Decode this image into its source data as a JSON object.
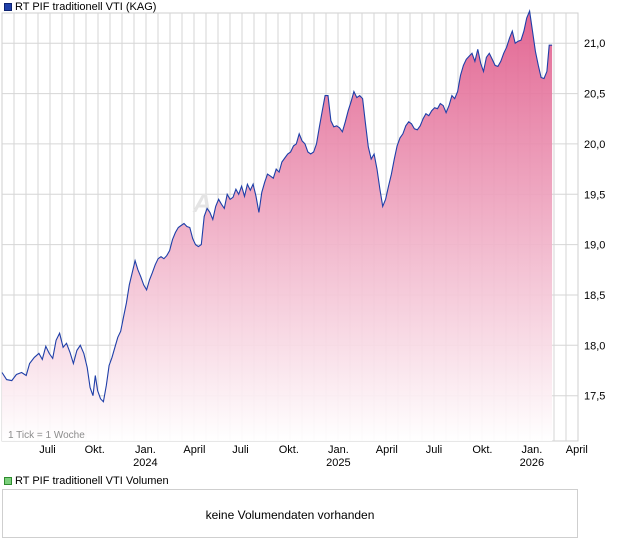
{
  "chart_data": {
    "type": "area",
    "series_name": "RT PIF traditionell VTI (KAG)",
    "tick_note": "1 Tick = 1 Woche",
    "y_ticks": [
      17.5,
      18.0,
      18.5,
      19.0,
      19.5,
      20.0,
      20.5,
      21.0
    ],
    "y_tick_labels": [
      "17,5",
      "18,0",
      "18,5",
      "19,0",
      "19,5",
      "20,0",
      "20,5",
      "21,0"
    ],
    "ylim": [
      17.05,
      21.3
    ],
    "x_ticks": [
      {
        "label": "Juli",
        "year": "",
        "t": 0.079
      },
      {
        "label": "Okt.",
        "year": "",
        "t": 0.161
      },
      {
        "label": "Jan.",
        "year": "2024",
        "t": 0.249
      },
      {
        "label": "April",
        "year": "",
        "t": 0.334
      },
      {
        "label": "Juli",
        "year": "",
        "t": 0.414
      },
      {
        "label": "Okt.",
        "year": "",
        "t": 0.498
      },
      {
        "label": "Jan.",
        "year": "2025",
        "t": 0.584
      },
      {
        "label": "April",
        "year": "",
        "t": 0.668
      },
      {
        "label": "Juli",
        "year": "",
        "t": 0.75
      },
      {
        "label": "Okt.",
        "year": "",
        "t": 0.834
      },
      {
        "label": "Jan.",
        "year": "2026",
        "t": 0.92
      },
      {
        "label": "April",
        "year": "",
        "t": 0.998
      }
    ],
    "points": [
      [
        0.0,
        17.73
      ],
      [
        0.008,
        17.66
      ],
      [
        0.017,
        17.65
      ],
      [
        0.025,
        17.71
      ],
      [
        0.034,
        17.73
      ],
      [
        0.042,
        17.7
      ],
      [
        0.048,
        17.82
      ],
      [
        0.056,
        17.88
      ],
      [
        0.064,
        17.92
      ],
      [
        0.07,
        17.86
      ],
      [
        0.076,
        17.99
      ],
      [
        0.082,
        17.92
      ],
      [
        0.088,
        17.87
      ],
      [
        0.094,
        18.05
      ],
      [
        0.1,
        18.12
      ],
      [
        0.106,
        17.98
      ],
      [
        0.112,
        18.02
      ],
      [
        0.118,
        17.93
      ],
      [
        0.124,
        17.82
      ],
      [
        0.13,
        17.95
      ],
      [
        0.136,
        18.0
      ],
      [
        0.142,
        17.92
      ],
      [
        0.148,
        17.78
      ],
      [
        0.153,
        17.58
      ],
      [
        0.158,
        17.5
      ],
      [
        0.162,
        17.7
      ],
      [
        0.166,
        17.55
      ],
      [
        0.171,
        17.47
      ],
      [
        0.176,
        17.44
      ],
      [
        0.181,
        17.6
      ],
      [
        0.186,
        17.8
      ],
      [
        0.191,
        17.88
      ],
      [
        0.196,
        17.98
      ],
      [
        0.201,
        18.08
      ],
      [
        0.206,
        18.14
      ],
      [
        0.211,
        18.28
      ],
      [
        0.216,
        18.42
      ],
      [
        0.221,
        18.6
      ],
      [
        0.226,
        18.72
      ],
      [
        0.231,
        18.84
      ],
      [
        0.236,
        18.75
      ],
      [
        0.241,
        18.68
      ],
      [
        0.246,
        18.6
      ],
      [
        0.251,
        18.55
      ],
      [
        0.256,
        18.65
      ],
      [
        0.261,
        18.72
      ],
      [
        0.266,
        18.8
      ],
      [
        0.271,
        18.86
      ],
      [
        0.276,
        18.88
      ],
      [
        0.281,
        18.86
      ],
      [
        0.286,
        18.89
      ],
      [
        0.291,
        18.94
      ],
      [
        0.296,
        19.05
      ],
      [
        0.301,
        19.12
      ],
      [
        0.306,
        19.17
      ],
      [
        0.311,
        19.19
      ],
      [
        0.316,
        19.21
      ],
      [
        0.321,
        19.18
      ],
      [
        0.326,
        19.17
      ],
      [
        0.331,
        19.06
      ],
      [
        0.336,
        19.0
      ],
      [
        0.341,
        18.98
      ],
      [
        0.346,
        19.0
      ],
      [
        0.351,
        19.28
      ],
      [
        0.356,
        19.36
      ],
      [
        0.361,
        19.32
      ],
      [
        0.366,
        19.25
      ],
      [
        0.371,
        19.38
      ],
      [
        0.376,
        19.45
      ],
      [
        0.381,
        19.4
      ],
      [
        0.386,
        19.36
      ],
      [
        0.391,
        19.5
      ],
      [
        0.396,
        19.45
      ],
      [
        0.401,
        19.47
      ],
      [
        0.406,
        19.55
      ],
      [
        0.411,
        19.5
      ],
      [
        0.416,
        19.58
      ],
      [
        0.421,
        19.48
      ],
      [
        0.426,
        19.6
      ],
      [
        0.431,
        19.54
      ],
      [
        0.436,
        19.6
      ],
      [
        0.441,
        19.48
      ],
      [
        0.446,
        19.32
      ],
      [
        0.451,
        19.52
      ],
      [
        0.456,
        19.62
      ],
      [
        0.461,
        19.7
      ],
      [
        0.466,
        19.68
      ],
      [
        0.471,
        19.66
      ],
      [
        0.476,
        19.75
      ],
      [
        0.481,
        19.72
      ],
      [
        0.486,
        19.82
      ],
      [
        0.491,
        19.86
      ],
      [
        0.496,
        19.9
      ],
      [
        0.501,
        19.92
      ],
      [
        0.506,
        19.98
      ],
      [
        0.511,
        20.0
      ],
      [
        0.516,
        20.1
      ],
      [
        0.521,
        20.03
      ],
      [
        0.526,
        20.0
      ],
      [
        0.531,
        19.92
      ],
      [
        0.536,
        19.9
      ],
      [
        0.541,
        19.92
      ],
      [
        0.546,
        20.0
      ],
      [
        0.551,
        20.17
      ],
      [
        0.556,
        20.33
      ],
      [
        0.561,
        20.48
      ],
      [
        0.566,
        20.48
      ],
      [
        0.571,
        20.23
      ],
      [
        0.576,
        20.17
      ],
      [
        0.581,
        20.18
      ],
      [
        0.586,
        20.16
      ],
      [
        0.591,
        20.12
      ],
      [
        0.596,
        20.22
      ],
      [
        0.601,
        20.33
      ],
      [
        0.606,
        20.42
      ],
      [
        0.611,
        20.52
      ],
      [
        0.616,
        20.46
      ],
      [
        0.621,
        20.48
      ],
      [
        0.626,
        20.45
      ],
      [
        0.631,
        20.2
      ],
      [
        0.636,
        19.97
      ],
      [
        0.641,
        19.85
      ],
      [
        0.646,
        19.9
      ],
      [
        0.651,
        19.75
      ],
      [
        0.656,
        19.55
      ],
      [
        0.661,
        19.38
      ],
      [
        0.666,
        19.45
      ],
      [
        0.671,
        19.58
      ],
      [
        0.676,
        19.7
      ],
      [
        0.681,
        19.85
      ],
      [
        0.686,
        19.98
      ],
      [
        0.691,
        20.06
      ],
      [
        0.696,
        20.1
      ],
      [
        0.701,
        20.18
      ],
      [
        0.706,
        20.22
      ],
      [
        0.711,
        20.2
      ],
      [
        0.716,
        20.15
      ],
      [
        0.721,
        20.14
      ],
      [
        0.726,
        20.18
      ],
      [
        0.731,
        20.25
      ],
      [
        0.736,
        20.3
      ],
      [
        0.741,
        20.28
      ],
      [
        0.746,
        20.33
      ],
      [
        0.751,
        20.36
      ],
      [
        0.756,
        20.35
      ],
      [
        0.761,
        20.4
      ],
      [
        0.766,
        20.38
      ],
      [
        0.771,
        20.31
      ],
      [
        0.776,
        20.38
      ],
      [
        0.781,
        20.48
      ],
      [
        0.786,
        20.45
      ],
      [
        0.791,
        20.52
      ],
      [
        0.796,
        20.68
      ],
      [
        0.801,
        20.78
      ],
      [
        0.806,
        20.84
      ],
      [
        0.811,
        20.87
      ],
      [
        0.816,
        20.9
      ],
      [
        0.821,
        20.82
      ],
      [
        0.826,
        20.94
      ],
      [
        0.831,
        20.8
      ],
      [
        0.836,
        20.72
      ],
      [
        0.841,
        20.86
      ],
      [
        0.846,
        20.9
      ],
      [
        0.851,
        20.84
      ],
      [
        0.856,
        20.78
      ],
      [
        0.861,
        20.77
      ],
      [
        0.866,
        20.82
      ],
      [
        0.871,
        20.9
      ],
      [
        0.876,
        20.96
      ],
      [
        0.881,
        21.05
      ],
      [
        0.886,
        21.12
      ],
      [
        0.891,
        21.0
      ],
      [
        0.896,
        21.02
      ],
      [
        0.901,
        21.03
      ],
      [
        0.906,
        21.12
      ],
      [
        0.911,
        21.25
      ],
      [
        0.916,
        21.32
      ],
      [
        0.921,
        21.12
      ],
      [
        0.926,
        20.92
      ],
      [
        0.931,
        20.78
      ],
      [
        0.936,
        20.66
      ],
      [
        0.941,
        20.65
      ],
      [
        0.946,
        20.72
      ],
      [
        0.95,
        20.98
      ],
      [
        0.955,
        20.98
      ]
    ]
  },
  "volume": {
    "legend": "RT PIF traditionell VTI Volumen",
    "message": "keine Volumendaten vorhanden"
  },
  "colors": {
    "line": "#1f3fa8",
    "fill_top": "#e05a8a",
    "fill_bottom": "#ffffff",
    "grid": "#d6d6d6"
  }
}
